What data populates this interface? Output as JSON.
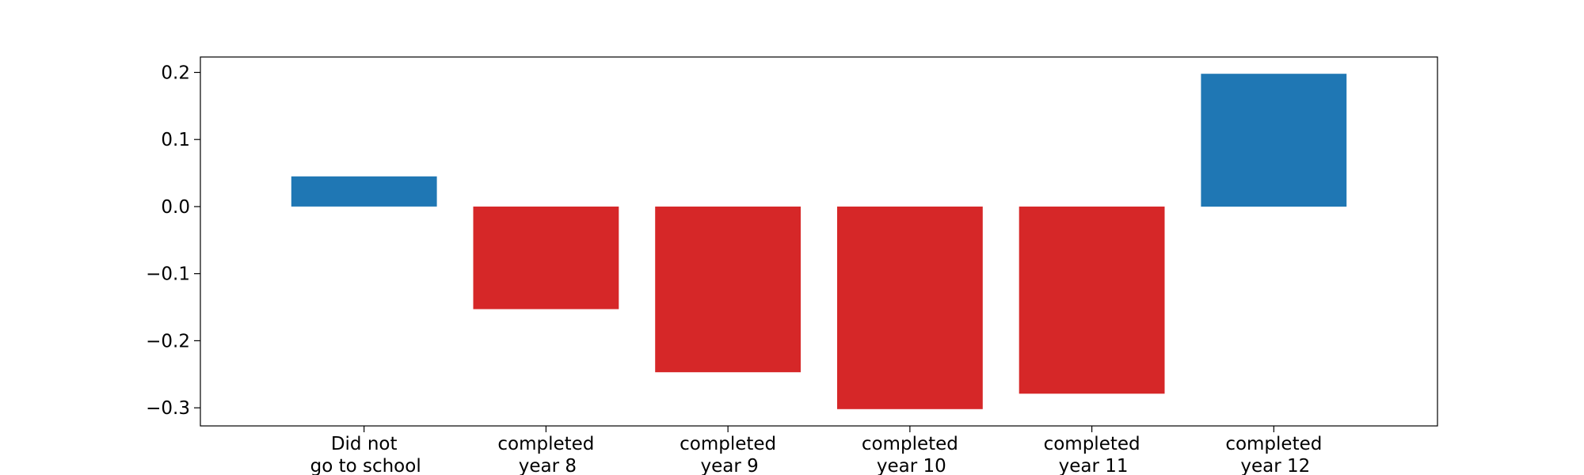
{
  "chart_data": {
    "type": "bar",
    "title": "",
    "xlabel": "",
    "ylabel": "",
    "categories": [
      [
        "Did not",
        "go to school"
      ],
      [
        "completed",
        "year 8"
      ],
      [
        "completed",
        "year 9"
      ],
      [
        "completed",
        "year 10"
      ],
      [
        "completed",
        "year 11"
      ],
      [
        "completed",
        "year 12"
      ]
    ],
    "values": [
      0.045,
      -0.153,
      -0.247,
      -0.302,
      -0.279,
      0.198
    ],
    "bar_colors": [
      "#1f77b4",
      "#d62728",
      "#d62728",
      "#d62728",
      "#d62728",
      "#1f77b4"
    ],
    "ylim": [
      -0.327,
      0.223
    ],
    "yticks": [
      0.2,
      0.1,
      0.0,
      -0.1,
      -0.2,
      -0.3
    ],
    "ytick_labels": [
      "0.2",
      "0.1",
      "0.0",
      "−0.1",
      "−0.2",
      "−0.3"
    ],
    "grid": false,
    "legend": "none"
  }
}
